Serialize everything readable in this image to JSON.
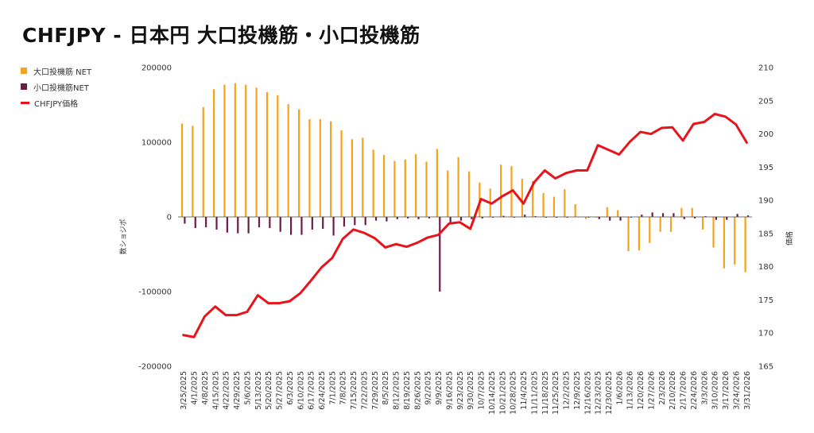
{
  "title": "CHFJPY - 日本円 大口投機筋・小口投機筋",
  "colors": {
    "large": "#f7a21b",
    "small": "#6b1d4a",
    "price": "#e8141c"
  },
  "chart_data": {
    "type": "bar+line",
    "title": "CHFJPY - 日本円 大口投機筋・小口投機筋",
    "ylabel_left": "数ショジポ",
    "ylabel_right": "価格",
    "ylim_left": [
      -200000,
      200000
    ],
    "ylim_right": [
      165,
      210
    ],
    "yticks_left": [
      "200000",
      "100000",
      "0",
      "-100000",
      "-200000"
    ],
    "yticks_right": [
      "210",
      "205",
      "200",
      "195",
      "190",
      "185",
      "180",
      "175",
      "170",
      "165"
    ],
    "legend_position": "top-left",
    "grid": false,
    "x": [
      "3/25/2025",
      "4/1/2025",
      "4/8/2025",
      "4/15/2025",
      "4/22/2025",
      "4/29/2025",
      "5/6/2025",
      "5/13/2025",
      "5/20/2025",
      "5/27/2025",
      "6/3/2025",
      "6/10/2025",
      "6/17/2025",
      "6/24/2025",
      "7/1/2025",
      "7/8/2025",
      "7/15/2025",
      "7/22/2025",
      "7/29/2025",
      "8/5/2025",
      "8/12/2025",
      "8/19/2025",
      "8/26/2025",
      "9/2/2025",
      "9/9/2025",
      "9/16/2025",
      "9/23/2025",
      "9/30/2025",
      "10/7/2025",
      "10/14/2025",
      "10/21/2025",
      "10/28/2025",
      "11/4/2025",
      "11/11/2025",
      "11/18/2025",
      "11/25/2025",
      "12/2/2025",
      "12/9/2025",
      "12/16/2025",
      "12/23/2025",
      "12/30/2025",
      "1/6/2026",
      "1/13/2026",
      "1/20/2026",
      "1/27/2026",
      "2/3/2026",
      "2/10/2026",
      "2/17/2026",
      "2/24/2026",
      "3/3/2026",
      "3/10/2026",
      "3/17/2026",
      "3/24/2026",
      "3/31/2026"
    ],
    "series": [
      {
        "name": "大口投機筋 NET",
        "kind": "bar",
        "axis": "left",
        "values": [
          125000,
          122000,
          147000,
          171000,
          177000,
          179000,
          177000,
          173000,
          167000,
          163000,
          151000,
          144000,
          131000,
          131000,
          128000,
          116000,
          104000,
          106000,
          90000,
          83000,
          75000,
          77000,
          84000,
          74000,
          91000,
          62000,
          80000,
          61000,
          46000,
          38000,
          70000,
          68000,
          51000,
          48000,
          32000,
          27000,
          37000,
          17000,
          -3000,
          -1000,
          13000,
          9000,
          -46000,
          -45000,
          -35000,
          -20000,
          -20000,
          12000,
          12000,
          -17000,
          -41000,
          -69000,
          -64000,
          -74000
        ]
      },
      {
        "name": "小口投機筋NET",
        "kind": "bar",
        "axis": "left",
        "values": [
          -9000,
          -15000,
          -14000,
          -17000,
          -21000,
          -22000,
          -22000,
          -14000,
          -15000,
          -20000,
          -24000,
          -24000,
          -17000,
          -16000,
          -25000,
          -13000,
          -11000,
          -11000,
          -5000,
          -6000,
          -3000,
          -2000,
          -3000,
          -2000,
          -100000,
          -8000,
          -5000,
          -3000,
          -2000,
          -1000,
          1500,
          -1000,
          3000,
          1000,
          -1000,
          -1000,
          -1000,
          0,
          -1000,
          -3000,
          -5000,
          -5000,
          -1000,
          3000,
          6000,
          5000,
          5000,
          -3000,
          -2000,
          1000,
          -4000,
          -4000,
          4000,
          2000
        ]
      },
      {
        "name": "CHFJPY価格",
        "kind": "line",
        "axis": "right",
        "values": [
          169.7,
          169.4,
          172.5,
          174.0,
          172.7,
          172.7,
          173.2,
          175.7,
          174.5,
          174.5,
          174.8,
          176.0,
          177.9,
          179.9,
          181.3,
          184.2,
          185.6,
          185.1,
          184.3,
          182.9,
          183.4,
          183.0,
          183.6,
          184.4,
          184.8,
          186.5,
          186.7,
          185.7,
          190.2,
          189.5,
          190.6,
          191.5,
          189.5,
          192.7,
          194.5,
          193.3,
          194.1,
          194.5,
          194.5,
          198.3,
          197.6,
          196.9,
          198.8,
          200.3,
          200.0,
          200.9,
          201.0,
          199.0,
          201.5,
          201.8,
          203.0,
          202.6,
          201.4,
          198.7
        ]
      }
    ]
  }
}
